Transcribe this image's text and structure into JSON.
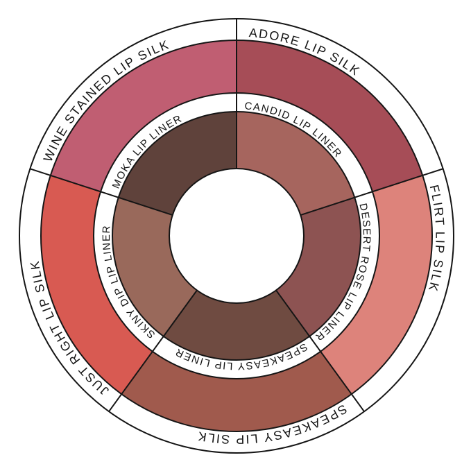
{
  "figure": {
    "description": "Lip shade pairing wheel with outer lip silk ring and inner lip liner ring",
    "background": "#ffffff",
    "line_color": "#151515",
    "text_color": "#151515",
    "center_hole_color": "#ffffff",
    "outer_ring": {
      "name": "lip-silk-ring",
      "segments": [
        {
          "label": "ADORE LIP SILK",
          "color": "#A64D57",
          "start_angle": 90
        },
        {
          "label": "FLIRT LIP SILK",
          "color": "#DD837B",
          "start_angle": 18
        },
        {
          "label": "SPEAKEASY LIP SILK",
          "color": "#A05A4D",
          "start_angle": -54
        },
        {
          "label": "JUST RIGHT LIP SILK",
          "color": "#D85A52",
          "start_angle": -126
        },
        {
          "label": "WINE STAINED LIP SILK",
          "color": "#C05E72",
          "start_angle": -198
        }
      ]
    },
    "inner_ring": {
      "name": "lip-liner-ring",
      "segments": [
        {
          "label": "CANDID LIP LINER",
          "color": "#A6655E",
          "start_angle": 90
        },
        {
          "label": "DESERT ROSE LIP LINER",
          "color": "#8D5352",
          "start_angle": 18
        },
        {
          "label": "SPEAKEASY LIP LINER",
          "color": "#6F4B41",
          "start_angle": -54
        },
        {
          "label": "SKINY DIP LIP LINER",
          "color": "#99695B",
          "start_angle": -126
        },
        {
          "label": "MOKA LIP LINER",
          "color": "#5F423B",
          "start_angle": -198
        }
      ]
    }
  }
}
